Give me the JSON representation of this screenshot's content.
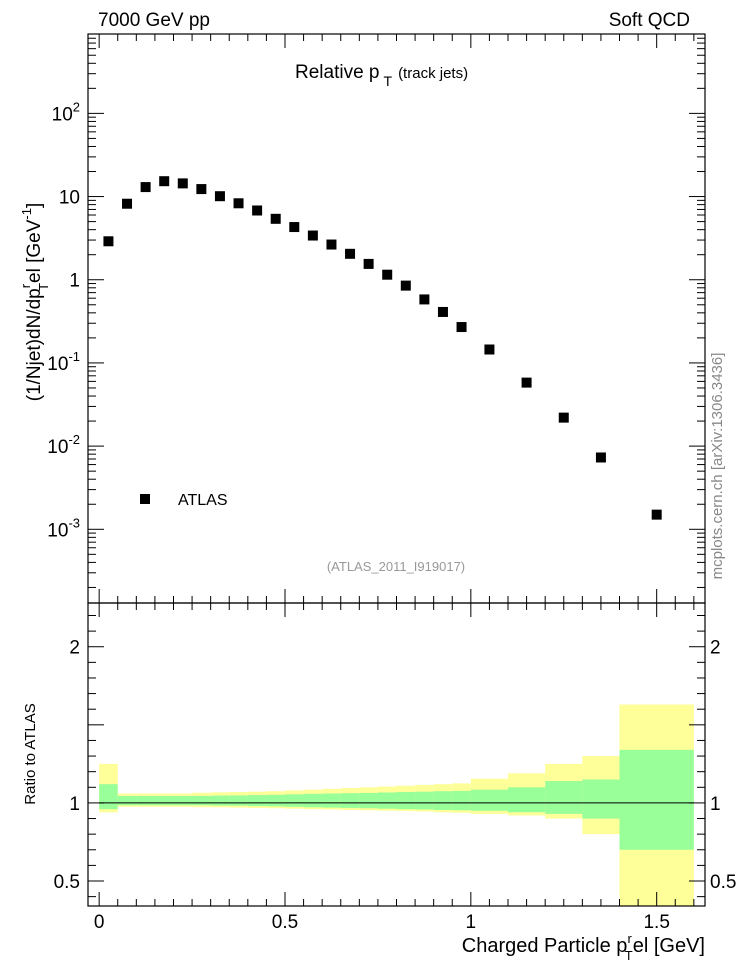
{
  "header": {
    "left_label": "7000 GeV pp",
    "right_label": "Soft QCD"
  },
  "side_label": "mcplots.cern.ch [arXiv:1306.3436]",
  "analysis_label": "(ATLAS_2011_I919017)",
  "plot_title": {
    "main": "Relative p",
    "sub": "T",
    "suffix": "(track jets)"
  },
  "main_ylabel": {
    "part1": "(1/Njet)dN/dp",
    "sup_r": "r",
    "sub_T": "T",
    "part2": "el [GeV",
    "exp": "-1",
    "part3": "]"
  },
  "ratio_ylabel": "Ratio to ATLAS",
  "xlabel": {
    "part1": "Charged Particle p",
    "sup_r": "r",
    "sub_T": "T",
    "part2": "el [GeV]"
  },
  "legend": {
    "entry": "ATLAS"
  },
  "colors": {
    "marker": "#000000",
    "band_outer": "#ffff99",
    "band_inner": "#99ff99"
  },
  "chart_data": [
    {
      "type": "scatter",
      "yscale": "log",
      "xlim": [
        -0.03,
        1.63
      ],
      "ylim": [
        0.00013,
        900
      ],
      "x_ticks": [
        "0",
        "0.5",
        "1",
        "1.5"
      ],
      "y_ticks": [
        {
          "value": 0.001,
          "base": "10",
          "exp": "-3"
        },
        {
          "value": 0.01,
          "base": "10",
          "exp": "-2"
        },
        {
          "value": 0.1,
          "base": "10",
          "exp": "-1"
        },
        {
          "value": 1,
          "base": "1",
          "exp": ""
        },
        {
          "value": 10,
          "base": "10",
          "exp": ""
        },
        {
          "value": 100,
          "base": "10",
          "exp": "2"
        }
      ],
      "series": [
        {
          "name": "ATLAS",
          "x": [
            0.025,
            0.075,
            0.125,
            0.175,
            0.225,
            0.275,
            0.325,
            0.375,
            0.425,
            0.475,
            0.525,
            0.575,
            0.625,
            0.675,
            0.725,
            0.775,
            0.825,
            0.875,
            0.925,
            0.975,
            1.05,
            1.15,
            1.25,
            1.35,
            1.5
          ],
          "y": [
            2.9,
            8.2,
            13.0,
            15.3,
            14.4,
            12.3,
            10.1,
            8.3,
            6.8,
            5.4,
            4.3,
            3.4,
            2.65,
            2.05,
            1.55,
            1.15,
            0.85,
            0.58,
            0.41,
            0.27,
            0.145,
            0.058,
            0.022,
            0.0073,
            0.0015
          ]
        }
      ]
    },
    {
      "type": "area",
      "title": "Ratio to ATLAS",
      "xlim": [
        -0.03,
        1.63
      ],
      "ylim": [
        0.34,
        2.28
      ],
      "x_ticks": [
        "0",
        "0.5",
        "1",
        "1.5"
      ],
      "y_ticks": [
        "0.5",
        "1",
        "2"
      ],
      "bins": [
        [
          0.0,
          0.05
        ],
        [
          0.05,
          0.1
        ],
        [
          0.1,
          0.15
        ],
        [
          0.15,
          0.2
        ],
        [
          0.2,
          0.25
        ],
        [
          0.25,
          0.3
        ],
        [
          0.3,
          0.35
        ],
        [
          0.35,
          0.4
        ],
        [
          0.4,
          0.45
        ],
        [
          0.45,
          0.5
        ],
        [
          0.5,
          0.55
        ],
        [
          0.55,
          0.6
        ],
        [
          0.6,
          0.65
        ],
        [
          0.65,
          0.7
        ],
        [
          0.7,
          0.75
        ],
        [
          0.75,
          0.8
        ],
        [
          0.8,
          0.85
        ],
        [
          0.85,
          0.9
        ],
        [
          0.9,
          0.95
        ],
        [
          0.95,
          1.0
        ],
        [
          1.0,
          1.1
        ],
        [
          1.1,
          1.2
        ],
        [
          1.2,
          1.3
        ],
        [
          1.3,
          1.4
        ],
        [
          1.4,
          1.6
        ]
      ],
      "stat_band": [
        [
          0.96,
          1.12
        ],
        [
          0.985,
          1.045
        ],
        [
          0.985,
          1.045
        ],
        [
          0.985,
          1.045
        ],
        [
          0.985,
          1.045
        ],
        [
          0.985,
          1.045
        ],
        [
          0.983,
          1.047
        ],
        [
          0.982,
          1.048
        ],
        [
          0.98,
          1.05
        ],
        [
          0.978,
          1.052
        ],
        [
          0.975,
          1.055
        ],
        [
          0.972,
          1.058
        ],
        [
          0.97,
          1.06
        ],
        [
          0.968,
          1.062
        ],
        [
          0.966,
          1.064
        ],
        [
          0.963,
          1.067
        ],
        [
          0.96,
          1.07
        ],
        [
          0.958,
          1.072
        ],
        [
          0.955,
          1.075
        ],
        [
          0.953,
          1.077
        ],
        [
          0.95,
          1.085
        ],
        [
          0.94,
          1.1
        ],
        [
          0.93,
          1.14
        ],
        [
          0.9,
          1.15
        ],
        [
          0.7,
          1.34
        ]
      ],
      "total_band": [
        [
          0.94,
          1.25
        ],
        [
          0.975,
          1.06
        ],
        [
          0.975,
          1.06
        ],
        [
          0.975,
          1.06
        ],
        [
          0.975,
          1.06
        ],
        [
          0.973,
          1.065
        ],
        [
          0.972,
          1.068
        ],
        [
          0.97,
          1.07
        ],
        [
          0.968,
          1.072
        ],
        [
          0.966,
          1.075
        ],
        [
          0.963,
          1.08
        ],
        [
          0.96,
          1.085
        ],
        [
          0.958,
          1.09
        ],
        [
          0.955,
          1.095
        ],
        [
          0.953,
          1.1
        ],
        [
          0.95,
          1.105
        ],
        [
          0.948,
          1.11
        ],
        [
          0.945,
          1.115
        ],
        [
          0.94,
          1.12
        ],
        [
          0.937,
          1.125
        ],
        [
          0.93,
          1.155
        ],
        [
          0.92,
          1.19
        ],
        [
          0.9,
          1.25
        ],
        [
          0.8,
          1.3
        ],
        [
          0.34,
          1.63
        ]
      ],
      "reference_line": 1
    }
  ]
}
